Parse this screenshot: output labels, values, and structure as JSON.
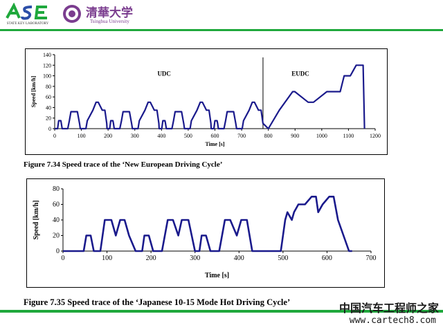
{
  "header": {
    "logo_left_text": "ASE",
    "logo_left_sub": "STATE KEY LABORATORY",
    "logo_right_cn": "清華大学",
    "logo_right_en": "Tsinghua University",
    "accent_color": "#1fa83c"
  },
  "figures": [
    {
      "caption": "Figure 7.34 Speed trace of the ‘New European Driving Cycle’"
    },
    {
      "caption": "Figure 7.35 Speed trace of the ‘Japanese 10-15 Mode Hot Driving Cycle’"
    }
  ],
  "watermark": {
    "cn": "中国汽车工程师之家",
    "url": "www.cartech8.com"
  },
  "chart_data": [
    {
      "type": "line",
      "title": "",
      "xlabel": "Time [s]",
      "ylabel": "Speed [km/h]",
      "xlim": [
        0,
        1200
      ],
      "ylim": [
        0,
        140
      ],
      "xticks": [
        0,
        100,
        200,
        300,
        400,
        500,
        600,
        700,
        800,
        900,
        1000,
        1100,
        1200
      ],
      "yticks": [
        0,
        20,
        40,
        60,
        80,
        100,
        120,
        140
      ],
      "annotations": [
        {
          "text": "UDC",
          "x": 410,
          "y": 100
        },
        {
          "text": "EUDC",
          "x": 920,
          "y": 100
        }
      ],
      "divider_x": 780,
      "series": [
        {
          "x": [
            0,
            11,
            15,
            23,
            25,
            28,
            49,
            55,
            61,
            85,
            93,
            96,
            117,
            122,
            143,
            155,
            163,
            178,
            188,
            195,
            196,
            206,
            210,
            218,
            220,
            223,
            244,
            250,
            256,
            280,
            288,
            291,
            312,
            317,
            338,
            350,
            358,
            373,
            383,
            390,
            391,
            401,
            405,
            413,
            415,
            418,
            439,
            445,
            451,
            475,
            483,
            486,
            507,
            512,
            533,
            545,
            553,
            568,
            578,
            585,
            586,
            596,
            600,
            608,
            610,
            613,
            634,
            640,
            646,
            670,
            678,
            681,
            702,
            707,
            728,
            740,
            748,
            763,
            773,
            780,
            800,
            841,
            891,
            899,
            949,
            969,
            1019,
            1033,
            1069,
            1084,
            1099,
            1107,
            1129,
            1155,
            1160
          ],
          "y": [
            0,
            0,
            15,
            15,
            10,
            0,
            0,
            15,
            32,
            32,
            10,
            0,
            0,
            15,
            35,
            50,
            50,
            35,
            35,
            10,
            0,
            0,
            15,
            15,
            10,
            0,
            0,
            15,
            32,
            32,
            10,
            0,
            0,
            15,
            35,
            50,
            50,
            35,
            35,
            10,
            0,
            0,
            15,
            15,
            10,
            0,
            0,
            15,
            32,
            32,
            10,
            0,
            0,
            15,
            35,
            50,
            50,
            35,
            35,
            10,
            0,
            0,
            15,
            15,
            10,
            0,
            0,
            15,
            32,
            32,
            10,
            0,
            0,
            15,
            35,
            50,
            50,
            35,
            35,
            10,
            0,
            35,
            70,
            70,
            50,
            50,
            70,
            70,
            70,
            100,
            100,
            100,
            120,
            120,
            0
          ]
        }
      ]
    },
    {
      "type": "line",
      "title": "",
      "xlabel": "Time [s]",
      "ylabel": "Speed [km/h]",
      "xlim": [
        0,
        700
      ],
      "ylim": [
        0,
        80
      ],
      "xticks": [
        0,
        100,
        200,
        300,
        400,
        500,
        600,
        700
      ],
      "yticks": [
        0,
        20,
        40,
        60,
        80
      ],
      "series": [
        {
          "x": [
            0,
            47,
            53,
            63,
            70,
            85,
            95,
            110,
            120,
            130,
            140,
            150,
            165,
            180,
            185,
            195,
            205,
            225,
            238,
            250,
            262,
            270,
            285,
            300,
            310,
            315,
            325,
            335,
            355,
            368,
            380,
            395,
            405,
            418,
            430,
            495,
            505,
            510,
            520,
            525,
            535,
            550,
            565,
            575,
            580,
            590,
            605,
            615,
            625,
            650,
            657
          ],
          "y": [
            0,
            0,
            20,
            20,
            0,
            0,
            40,
            40,
            20,
            40,
            40,
            20,
            0,
            0,
            20,
            20,
            0,
            0,
            40,
            40,
            20,
            40,
            40,
            0,
            0,
            20,
            20,
            0,
            0,
            40,
            40,
            20,
            40,
            40,
            0,
            0,
            40,
            50,
            40,
            50,
            60,
            60,
            70,
            70,
            50,
            60,
            70,
            70,
            40,
            0,
            0
          ]
        }
      ]
    }
  ]
}
